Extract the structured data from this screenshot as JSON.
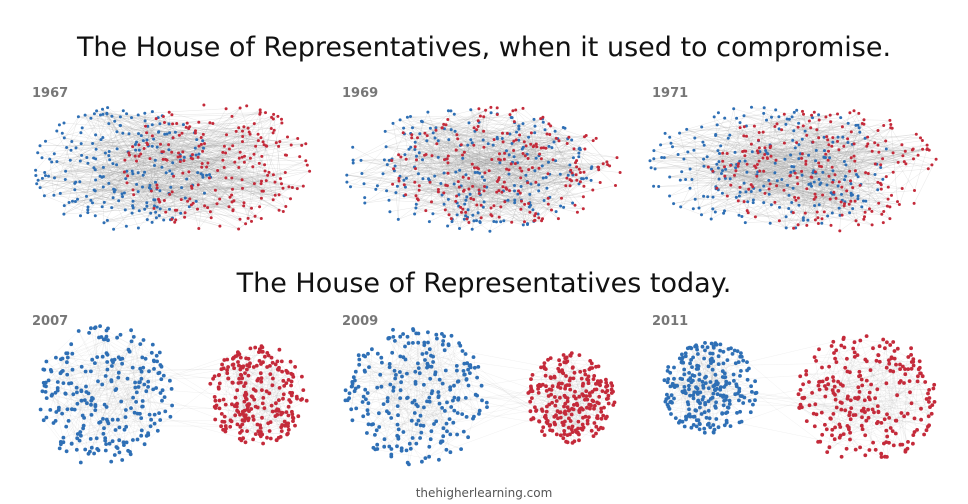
{
  "titles": {
    "top": "The House of Representatives, when it used to compromise.",
    "bottom": "The House of Representatives today."
  },
  "credit": "thehigherlearning.com",
  "colors": {
    "democrat": "#2e6fb5",
    "republican": "#c42a3a",
    "edges": "#9a9a9a",
    "text": "#111111"
  },
  "networks": [
    {
      "year": "1967",
      "era": "compromise",
      "mixing": 0.55,
      "separation": 0.35,
      "density": 0.45
    },
    {
      "year": "1969",
      "era": "compromise",
      "mixing": 0.85,
      "separation": 0.1,
      "density": 0.55
    },
    {
      "year": "1971",
      "era": "compromise",
      "mixing": 0.75,
      "separation": 0.2,
      "density": 0.5
    },
    {
      "year": "2007",
      "era": "today",
      "mixing": 0.0,
      "separation": 1.0,
      "density": 0.2
    },
    {
      "year": "2009",
      "era": "today",
      "mixing": 0.0,
      "separation": 0.95,
      "density": 0.25
    },
    {
      "year": "2011",
      "era": "today",
      "mixing": 0.0,
      "separation": 1.0,
      "density": 0.35
    }
  ]
}
